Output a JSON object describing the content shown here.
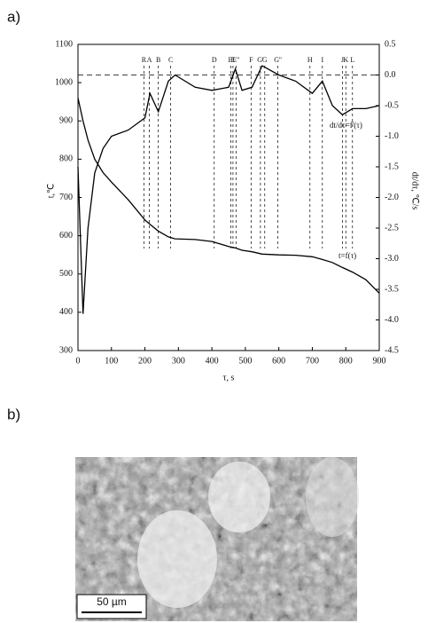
{
  "panel_labels": [
    "a)",
    "b)"
  ],
  "chart_data": {
    "type": "line",
    "xlabel": "τ, s",
    "ylabel": "t,℃",
    "y2label": "dt/dτ, ℃/s",
    "x": [
      0,
      15,
      30,
      50,
      75,
      100,
      150,
      200,
      215,
      240,
      270,
      290,
      350,
      400,
      450,
      470,
      490,
      520,
      550,
      600,
      650,
      700,
      730,
      760,
      790,
      820,
      860,
      900
    ],
    "series": [
      {
        "name": "t=f(τ)",
        "color": "#000000",
        "values": [
          960,
          900,
          850,
          800,
          765,
          740,
          694,
          641,
          630,
          612,
          597,
          592,
          590,
          585,
          572,
          568,
          562,
          558,
          552,
          550,
          549,
          545,
          538,
          530,
          517,
          505,
          485,
          450
        ]
      },
      {
        "name": "dt/dτ=f'(τ)",
        "color": "#000000",
        "axis": "y2",
        "values": [
          -1.5,
          -3.9,
          -2.5,
          -1.6,
          -1.2,
          -1.0,
          -0.9,
          -0.7,
          -0.3,
          -0.6,
          -0.1,
          0.0,
          -0.2,
          -0.25,
          -0.2,
          0.1,
          -0.25,
          -0.2,
          0.15,
          0.0,
          -0.1,
          -0.3,
          -0.1,
          -0.5,
          -0.65,
          -0.55,
          -0.55,
          -0.5
        ]
      }
    ],
    "xlim": [
      0,
      900
    ],
    "xticks": [
      0,
      100,
      200,
      300,
      400,
      500,
      600,
      700,
      800,
      900
    ],
    "ylim": [
      300,
      1100
    ],
    "yticks": [
      300,
      400,
      500,
      600,
      700,
      800,
      900,
      1000,
      1100
    ],
    "y2lim": [
      -4.5,
      0.5
    ],
    "y2ticks": [
      -4.5,
      {
        "value": -4,
        "label": "-4.0"
      },
      -3.5,
      {
        "value": -3,
        "label": "-3.0"
      },
      -2.5,
      {
        "value": -2,
        "label": "-2.0"
      },
      -1.5,
      {
        "value": -1,
        "label": "-1.0"
      },
      -0.5,
      {
        "value": 0,
        "label": "0.0"
      },
      0.5
    ],
    "reference_line_y2": 0,
    "markers": [
      {
        "label": "R",
        "x": 197
      },
      {
        "label": "A",
        "x": 213
      },
      {
        "label": "B",
        "x": 240
      },
      {
        "label": "C",
        "x": 277
      },
      {
        "label": "D",
        "x": 407
      },
      {
        "label": "E'",
        "x": 457
      },
      {
        "label": "E",
        "x": 463
      },
      {
        "label": "E''",
        "x": 472
      },
      {
        "label": "F",
        "x": 517
      },
      {
        "label": "G'",
        "x": 545
      },
      {
        "label": "G",
        "x": 558
      },
      {
        "label": "G''",
        "x": 597
      },
      {
        "label": "H",
        "x": 693
      },
      {
        "label": "I",
        "x": 730
      },
      {
        "label": "J",
        "x": 790
      },
      {
        "label": "K",
        "x": 800
      },
      {
        "label": "L",
        "x": 820
      }
    ]
  },
  "micrograph": {
    "scale_bar": "50 µm"
  }
}
